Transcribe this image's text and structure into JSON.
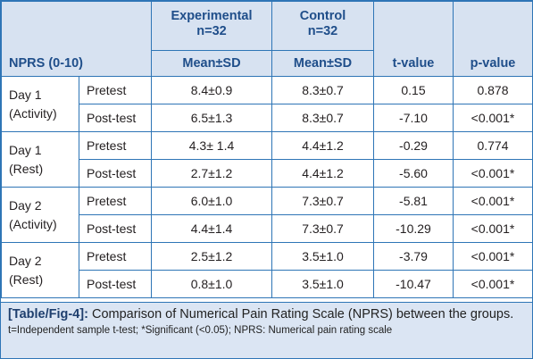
{
  "header": {
    "row_label": "NPRS (0-10)",
    "experimental": "Experimental",
    "experimental_n": "n=32",
    "control": "Control",
    "control_n": "n=32",
    "mean_sd_1": "Mean±SD",
    "mean_sd_2": "Mean±SD",
    "t_value": "t-value",
    "p_value": "p-value"
  },
  "groups": [
    {
      "label_line1": "Day 1",
      "label_line2": "(Activity)"
    },
    {
      "label_line1": "Day 1",
      "label_line2": "(Rest)"
    },
    {
      "label_line1": "Day 2",
      "label_line2": "(Activity)"
    },
    {
      "label_line1": "Day 2",
      "label_line2": "(Rest)"
    }
  ],
  "rows": [
    {
      "sub": "Pretest",
      "exp": "8.4±0.9",
      "ctrl": "8.3±0.7",
      "t": "0.15",
      "p": "0.878"
    },
    {
      "sub": "Post-test",
      "exp": "6.5±1.3",
      "ctrl": "8.3±0.7",
      "t": "-7.10",
      "p": "<0.001*"
    },
    {
      "sub": "Pretest",
      "exp": "4.3± 1.4",
      "ctrl": "4.4±1.2",
      "t": "-0.29",
      "p": "0.774"
    },
    {
      "sub": "Post-test",
      "exp": "2.7±1.2",
      "ctrl": "4.4±1.2",
      "t": "-5.60",
      "p": "<0.001*"
    },
    {
      "sub": "Pretest",
      "exp": "6.0±1.0",
      "ctrl": "7.3±0.7",
      "t": "-5.81",
      "p": "<0.001*"
    },
    {
      "sub": "Post-test",
      "exp": "4.4±1.4",
      "ctrl": "7.3±0.7",
      "t": "-10.29",
      "p": "<0.001*"
    },
    {
      "sub": "Pretest",
      "exp": "2.5±1.2",
      "ctrl": "3.5±1.0",
      "t": "-3.79",
      "p": "<0.001*"
    },
    {
      "sub": "Post-test",
      "exp": "0.8±1.0",
      "ctrl": "3.5±1.0",
      "t": "-10.47",
      "p": "<0.001*"
    }
  ],
  "caption": {
    "tag": "[Table/Fig-4]:",
    "text": "Comparison of Numerical Pain Rating Scale (NPRS) between the groups.",
    "footnote": "t=Independent sample t-test; *Significant (<0.05); NPRS: Numerical pain rating scale"
  },
  "colors": {
    "border": "#2e75b6",
    "header_bg": "#d7e2f1",
    "header_text": "#1f4e8a",
    "caption_bg": "#dbe5f3"
  }
}
